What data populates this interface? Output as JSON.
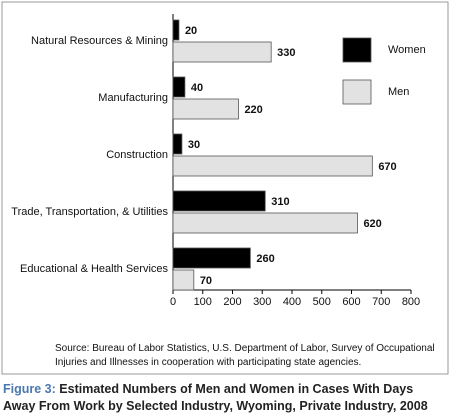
{
  "chart_data": {
    "type": "hbar",
    "categories": [
      "Natural Resources & Mining",
      "Manufacturing",
      "Construction",
      "Trade, Transportation, & Utilities",
      "Educational & Health Services"
    ],
    "series": [
      {
        "name": "Women",
        "color": "#000000",
        "values": [
          20,
          40,
          30,
          310,
          260
        ]
      },
      {
        "name": "Men",
        "color": "#e2e2e2",
        "values": [
          330,
          220,
          670,
          620,
          70
        ]
      }
    ],
    "xlim": [
      0,
      800
    ],
    "xticks": [
      0,
      100,
      200,
      300,
      400,
      500,
      600,
      700,
      800
    ],
    "legend": "upper right",
    "source": "Source: Bureau of Labor Statistics, U.S. Department of Labor, Survey of Occupational Injuries and Illnesses in cooperation with participating state agencies.",
    "figure_label": "Figure 3:",
    "title": "Estimated Numbers of Men and Women in Cases With Days Away From Work by Selected Industry, Wyoming, Private Industry, 2008"
  }
}
